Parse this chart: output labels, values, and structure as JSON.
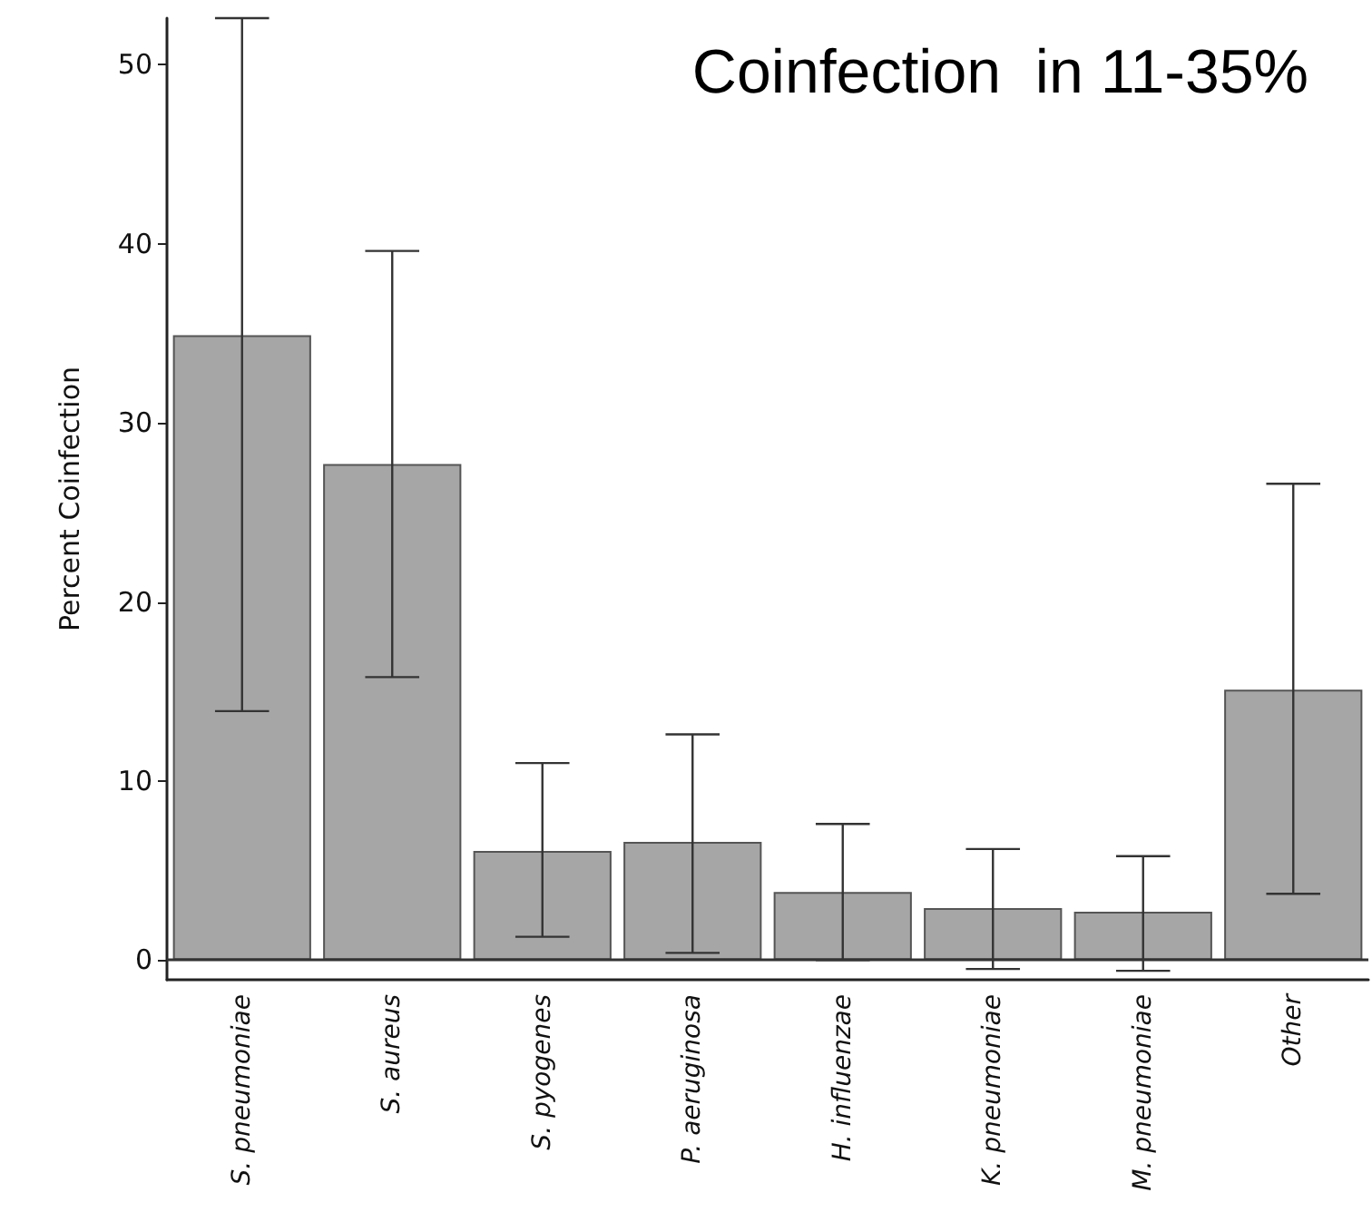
{
  "chart_data": {
    "type": "bar",
    "title": "Coinfection  in 11-35%",
    "ylabel": "Percent Coinfection",
    "categories": [
      "S. pneumoniae",
      "S. aureus",
      "S. pyogenes",
      "P. aeruginosa",
      "H. influenzae",
      "K. pneumoniae",
      "M. pneumoniae",
      "Other"
    ],
    "values": [
      34.9,
      27.7,
      6.1,
      6.6,
      3.8,
      2.9,
      2.7,
      15.1
    ],
    "errors": [
      [
        13.9,
        52.6
      ],
      [
        15.8,
        39.6
      ],
      [
        1.3,
        11.0
      ],
      [
        0.4,
        12.6
      ],
      [
        0,
        7.6
      ],
      [
        -0.5,
        6.2
      ],
      [
        -0.6,
        5.8
      ],
      [
        3.7,
        26.6
      ]
    ],
    "color": "#a6a6a6",
    "ylim": [
      -1.1,
      52.6
    ],
    "yticks": [
      0,
      10,
      20,
      30,
      40,
      50
    ],
    "grid": false,
    "ref_lines": [
      {
        "axis": "y",
        "value": 0,
        "color": "#333333"
      }
    ]
  }
}
